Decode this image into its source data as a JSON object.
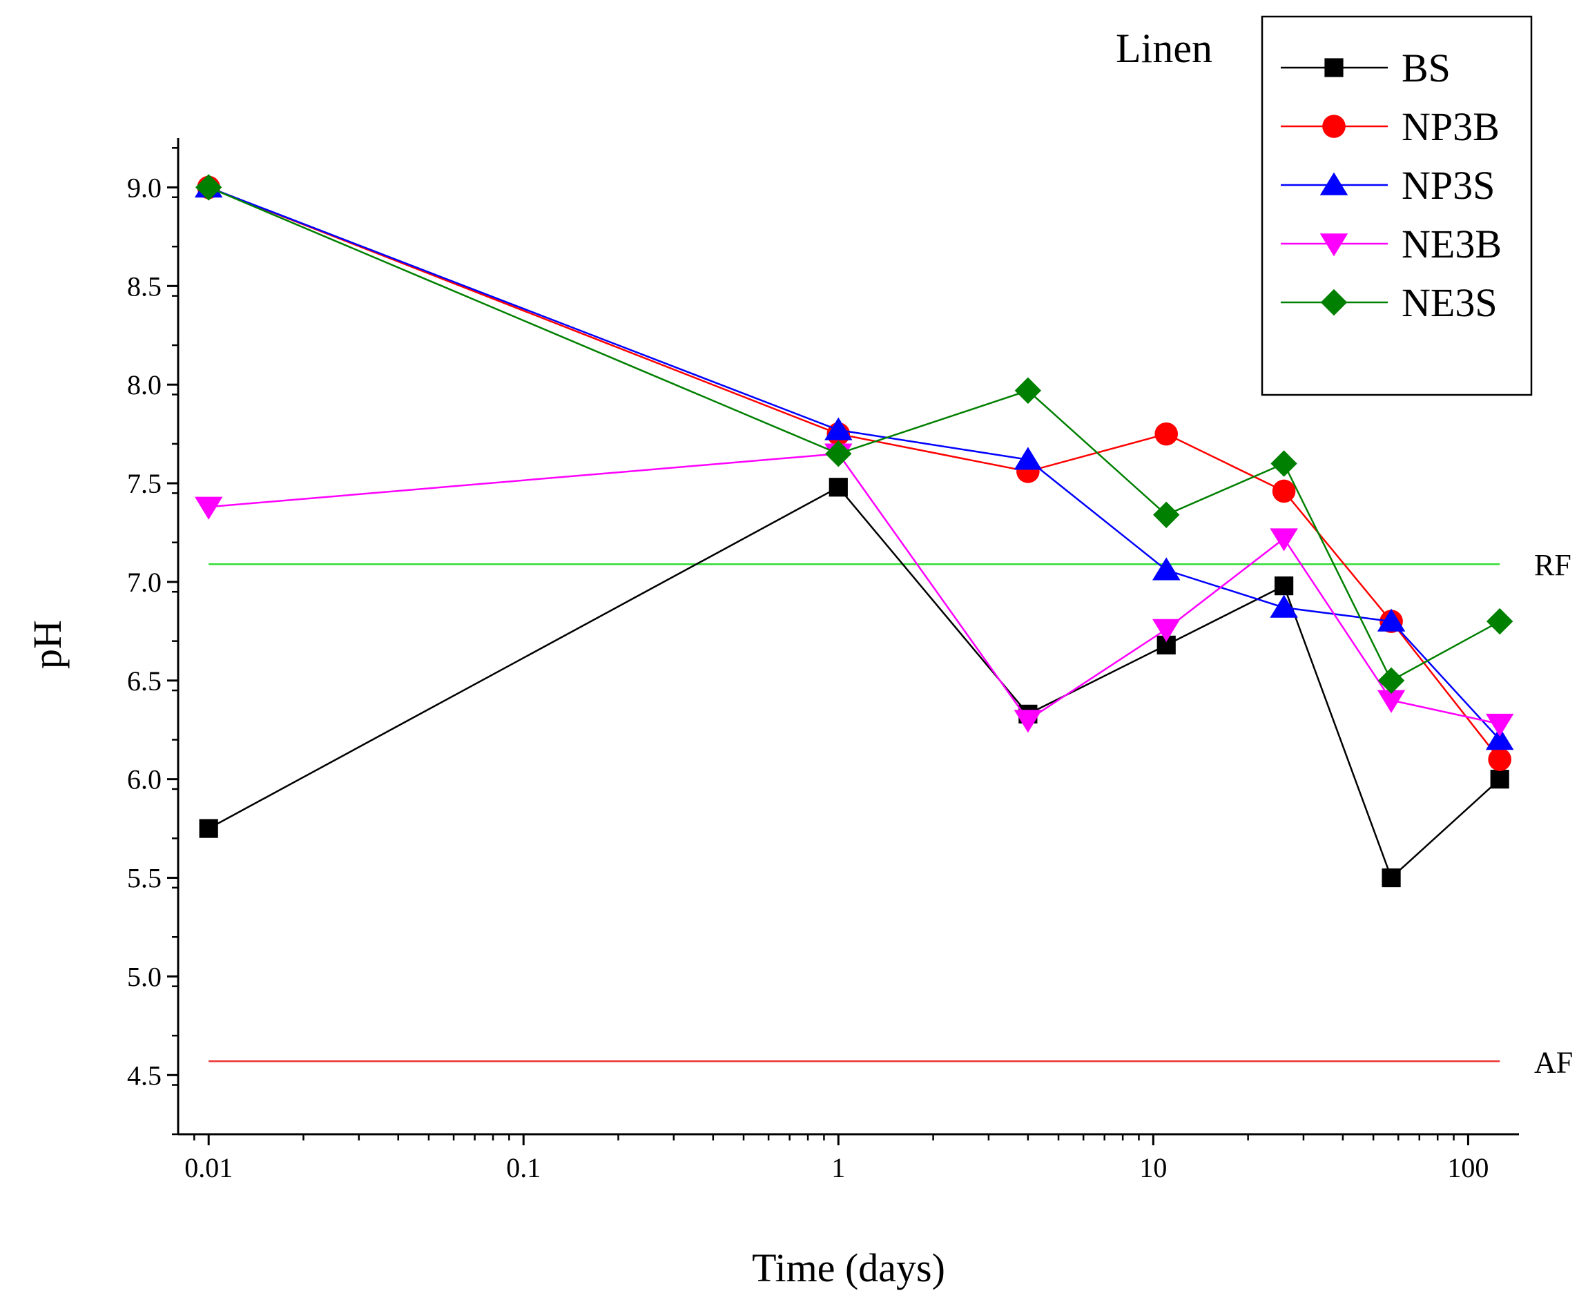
{
  "chart_data": {
    "type": "line",
    "title": "",
    "panel_label": "Linen",
    "xlabel": "Time (days)",
    "ylabel": "pH",
    "x_scale": "log",
    "xlim": [
      0.008,
      145
    ],
    "ylim": [
      4.2,
      9.25
    ],
    "x_ticks": [
      {
        "value": 0.01,
        "label": "0.01"
      },
      {
        "value": 0.1,
        "label": "0.1"
      },
      {
        "value": 1,
        "label": "1"
      },
      {
        "value": 10,
        "label": "10"
      },
      {
        "value": 100,
        "label": "100"
      }
    ],
    "y_ticks": [
      {
        "value": 4.5,
        "label": "4.5"
      },
      {
        "value": 5.0,
        "label": "5.0"
      },
      {
        "value": 5.5,
        "label": "5.5"
      },
      {
        "value": 6.0,
        "label": "6.0"
      },
      {
        "value": 6.5,
        "label": "6.5"
      },
      {
        "value": 7.0,
        "label": "7.0"
      },
      {
        "value": 7.5,
        "label": "7.5"
      },
      {
        "value": 8.0,
        "label": "8.0"
      },
      {
        "value": 8.5,
        "label": "8.5"
      },
      {
        "value": 9.0,
        "label": "9.0"
      }
    ],
    "grid": false,
    "legend_position": "top-right",
    "x": [
      0.01,
      1,
      4,
      11,
      26,
      57,
      126
    ],
    "series": [
      {
        "name": "BS",
        "color": "#000000",
        "marker": "square",
        "values": [
          5.75,
          7.48,
          6.33,
          6.68,
          6.98,
          5.5,
          6.0
        ]
      },
      {
        "name": "NP3B",
        "color": "#ff0000",
        "marker": "circle",
        "values": [
          9.0,
          7.75,
          7.56,
          7.75,
          7.46,
          6.8,
          6.1
        ]
      },
      {
        "name": "NP3S",
        "color": "#0000ff",
        "marker": "triangle-up",
        "values": [
          9.0,
          7.77,
          7.62,
          7.06,
          6.87,
          6.8,
          6.2
        ]
      },
      {
        "name": "NE3B",
        "color": "#ff00ff",
        "marker": "triangle-down",
        "values": [
          7.38,
          7.65,
          6.3,
          6.76,
          7.22,
          6.4,
          6.28
        ]
      },
      {
        "name": "NE3S",
        "color": "#008000",
        "marker": "diamond",
        "values": [
          9.0,
          7.65,
          7.97,
          7.34,
          7.6,
          6.5,
          6.8
        ]
      }
    ],
    "reference_lines": [
      {
        "label": "RF",
        "y": 7.09,
        "color": "#33dd33"
      },
      {
        "label": "AF",
        "y": 4.57,
        "color": "#ee3333"
      }
    ]
  }
}
